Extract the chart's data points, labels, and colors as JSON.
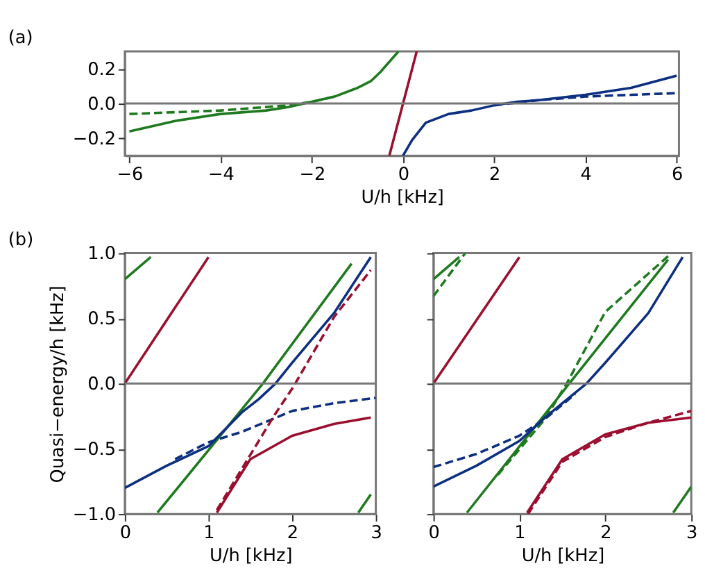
{
  "chart_data": [
    {
      "type": "line",
      "xlabel": "U/h [kHz]",
      "annotations": [
        "(a)"
      ],
      "xlim": [
        -6.1,
        6.05
      ],
      "ylim": [
        -0.3,
        0.3
      ],
      "xticks": [
        -6,
        -4,
        -2,
        0,
        2,
        4,
        6
      ],
      "yticks": [
        {
          "value": -0.2,
          "label": "−0.2"
        },
        {
          "value": 0,
          "label": "0.0"
        },
        {
          "value": 0.2,
          "label": "0.2"
        }
      ],
      "ref_lines": [
        {
          "axis": "y",
          "value": 0,
          "color": "#777777"
        }
      ],
      "series": [
        {
          "color": "#1f7a1f",
          "line_style": "solid",
          "x": [
            -6,
            -5,
            -4,
            -3,
            -2.5,
            -2,
            -1.5,
            -1,
            -0.7,
            -0.5,
            -0.3,
            -0.1
          ],
          "values": [
            -0.16,
            -0.1,
            -0.06,
            -0.04,
            -0.02,
            0.01,
            0.04,
            0.09,
            0.13,
            0.18,
            0.24,
            0.3
          ]
        },
        {
          "color": "#1f7a1f",
          "line_style": "dashed",
          "x": [
            -6,
            -5,
            -4,
            -3,
            -2.5,
            -2,
            -1.5
          ],
          "values": [
            -0.06,
            -0.05,
            -0.04,
            -0.02,
            -0.01,
            0.01,
            0.04
          ]
        },
        {
          "color": "#9a0e2e",
          "line_style": "solid",
          "x": [
            -0.3,
            0.3
          ],
          "values": [
            -0.3,
            0.3
          ]
        },
        {
          "color": "#0d2f80",
          "line_style": "solid",
          "x": [
            0,
            0.2,
            0.5,
            1,
            1.5,
            2,
            2.5,
            3,
            4,
            5,
            6
          ],
          "values": [
            -0.3,
            -0.21,
            -0.11,
            -0.06,
            -0.04,
            -0.01,
            0.01,
            0.02,
            0.05,
            0.09,
            0.16
          ]
        },
        {
          "color": "#0d2f80",
          "line_style": "dashed",
          "x": [
            2,
            3,
            4,
            5,
            6
          ],
          "values": [
            -0.01,
            0.02,
            0.04,
            0.05,
            0.06
          ]
        }
      ]
    },
    {
      "type": "line",
      "xlabel": "U/h [kHz]",
      "ylabel": "Quasi−energy/h [kHz]",
      "annotations": [
        "(b)"
      ],
      "xlim": [
        0,
        3
      ],
      "ylim": [
        -1,
        1
      ],
      "xticks": [
        0,
        1,
        2,
        3
      ],
      "yticks": [
        {
          "value": -1,
          "label": "−1.0"
        },
        {
          "value": -0.5,
          "label": "−0.5"
        },
        {
          "value": 0,
          "label": "0.0"
        },
        {
          "value": 0.5,
          "label": "0.5"
        },
        {
          "value": 1,
          "label": "1.0"
        }
      ],
      "ref_lines": [
        {
          "axis": "y",
          "value": 0,
          "color": "#777777"
        }
      ],
      "series": [
        {
          "color": "#1f7a1f",
          "line_style": "solid",
          "x": [
            0,
            0.31
          ],
          "values": [
            0.8,
            0.97
          ]
        },
        {
          "color": "#9a0e2e",
          "line_style": "solid",
          "x": [
            0,
            1
          ],
          "values": [
            0,
            0.97
          ]
        },
        {
          "color": "#1f7a1f",
          "line_style": "solid",
          "x": [
            0.39,
            1.65,
            2.71
          ],
          "values": [
            -0.99,
            0,
            0.92
          ]
        },
        {
          "color": "#0d2f80",
          "line_style": "solid",
          "x": [
            0,
            0.5,
            1,
            1.4,
            1.6,
            1.8,
            2,
            2.5,
            2.94
          ],
          "values": [
            -0.8,
            -0.63,
            -0.48,
            -0.22,
            -0.12,
            0,
            0.16,
            0.54,
            0.97
          ]
        },
        {
          "color": "#0d2f80",
          "line_style": "dashed",
          "x": [
            0.6,
            1,
            1.4,
            2,
            2.5,
            3
          ],
          "values": [
            -0.58,
            -0.45,
            -0.37,
            -0.21,
            -0.15,
            -0.11
          ]
        },
        {
          "color": "#9a0e2e",
          "line_style": "dashed",
          "x": [
            1.1,
            1.79,
            2,
            2.5,
            2.94
          ],
          "values": [
            -0.97,
            -0.24,
            -0.04,
            0.51,
            0.87
          ]
        },
        {
          "color": "#9a0e2e",
          "line_style": "solid",
          "x": [
            1.1,
            1.5,
            2,
            2.5,
            2.94
          ],
          "values": [
            -0.99,
            -0.58,
            -0.4,
            -0.31,
            -0.26
          ]
        },
        {
          "color": "#1f7a1f",
          "line_style": "solid",
          "x": [
            2.79,
            2.94
          ],
          "values": [
            -0.99,
            -0.85
          ]
        }
      ]
    },
    {
      "type": "line",
      "xlabel": "U/h [kHz]",
      "tick_labels": "x",
      "xlim": [
        0,
        3
      ],
      "ylim": [
        -1,
        1
      ],
      "xticks": [
        0,
        1,
        2,
        3
      ],
      "yticks": [
        {
          "value": -1,
          "label": null
        },
        {
          "value": -0.5,
          "label": null
        },
        {
          "value": 0,
          "label": null
        },
        {
          "value": 0.5,
          "label": null
        },
        {
          "value": 1,
          "label": null
        }
      ],
      "ref_lines": [
        {
          "axis": "y",
          "value": 0,
          "color": "#777777"
        }
      ],
      "series": [
        {
          "color": "#1f7a1f",
          "line_style": "solid",
          "x": [
            0,
            0.3
          ],
          "values": [
            0.8,
            0.97
          ]
        },
        {
          "color": "#1f7a1f",
          "line_style": "dashed",
          "x": [
            0,
            0.37
          ],
          "values": [
            0.67,
            1.0
          ]
        },
        {
          "color": "#9a0e2e",
          "line_style": "solid",
          "x": [
            0,
            1
          ],
          "values": [
            0,
            0.97
          ]
        },
        {
          "color": "#1f7a1f",
          "line_style": "solid",
          "x": [
            0.39,
            1.58,
            2.73
          ],
          "values": [
            -0.99,
            0,
            0.95
          ]
        },
        {
          "color": "#1f7a1f",
          "line_style": "dashed",
          "x": [
            0.75,
            1.3,
            1.55,
            2,
            2.77
          ],
          "values": [
            -0.7,
            -0.27,
            0,
            0.55,
            1.0
          ]
        },
        {
          "color": "#0d2f80",
          "line_style": "solid",
          "x": [
            0,
            0.5,
            1,
            1.3,
            1.5,
            1.78,
            2,
            2.5,
            2.9
          ],
          "values": [
            -0.79,
            -0.63,
            -0.44,
            -0.26,
            -0.15,
            0,
            0.16,
            0.54,
            0.97
          ]
        },
        {
          "color": "#0d2f80",
          "line_style": "dashed",
          "x": [
            0,
            0.5,
            1,
            1.3,
            1.65
          ],
          "values": [
            -0.64,
            -0.54,
            -0.4,
            -0.27,
            -0.08
          ]
        },
        {
          "color": "#9a0e2e",
          "line_style": "solid",
          "x": [
            1.09,
            1.5,
            2,
            2.5,
            3
          ],
          "values": [
            -0.99,
            -0.58,
            -0.39,
            -0.3,
            -0.26
          ]
        },
        {
          "color": "#9a0e2e",
          "line_style": "dashed",
          "x": [
            1.1,
            1.5,
            2,
            2.5,
            3
          ],
          "values": [
            -1.0,
            -0.6,
            -0.41,
            -0.3,
            -0.21
          ]
        },
        {
          "color": "#1f7a1f",
          "line_style": "solid",
          "x": [
            2.79,
            3
          ],
          "values": [
            -0.99,
            -0.79
          ]
        }
      ]
    }
  ]
}
